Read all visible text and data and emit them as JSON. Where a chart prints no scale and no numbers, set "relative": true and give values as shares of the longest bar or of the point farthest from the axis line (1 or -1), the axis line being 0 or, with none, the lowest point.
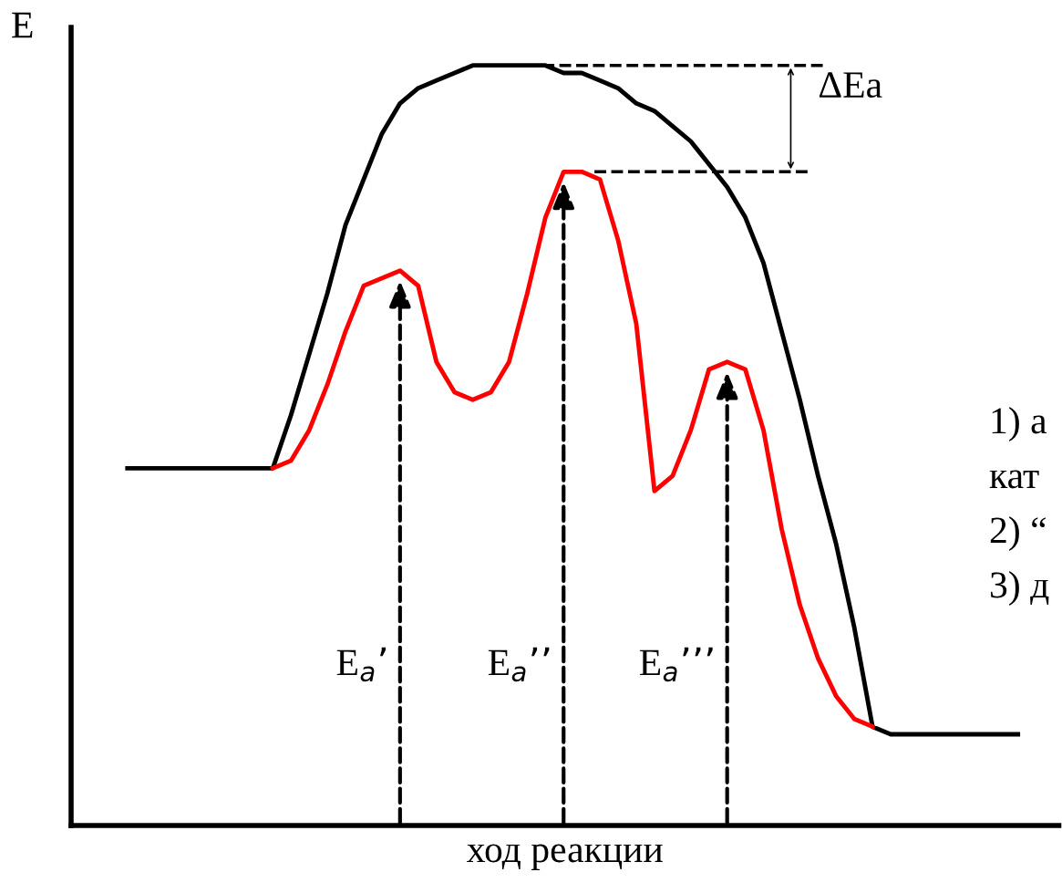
{
  "chart_data": {
    "type": "line",
    "relative": true,
    "xlabel": "ход реакции",
    "ylabel": "E",
    "categories": [
      null,
      null,
      null,
      null,
      null,
      null,
      null,
      null,
      null,
      null,
      null,
      null,
      null,
      null,
      null,
      null,
      null,
      null,
      null,
      null,
      null,
      null,
      null,
      null,
      null,
      null,
      null,
      null,
      null,
      null,
      null,
      null,
      null,
      null,
      null,
      null,
      null,
      null,
      null,
      null,
      null,
      null,
      null,
      null,
      null,
      null,
      null,
      null,
      null,
      null
    ],
    "series": [
      {
        "color": "#000000",
        "values": [
          0.47,
          0.47,
          0.47,
          0.47,
          0.47,
          0.47,
          0.47,
          0.47,
          0.47,
          0.54,
          0.62,
          0.7,
          0.79,
          0.85,
          0.91,
          0.95,
          0.97,
          0.98,
          0.99,
          1.0,
          1.0,
          1.0,
          1.0,
          1.0,
          0.99,
          0.99,
          0.98,
          0.97,
          0.95,
          0.94,
          0.92,
          0.9,
          0.87,
          0.84,
          0.8,
          0.74,
          0.65,
          0.56,
          0.46,
          0.37,
          0.26,
          0.13,
          0.12,
          0.12,
          0.12,
          0.12,
          0.12,
          0.12,
          0.12,
          0.12
        ]
      },
      {
        "color": "#ff0000",
        "values": [
          null,
          null,
          null,
          null,
          null,
          null,
          null,
          null,
          0.47,
          0.48,
          0.52,
          0.58,
          0.65,
          0.71,
          0.72,
          0.73,
          0.71,
          0.61,
          0.57,
          0.56,
          0.57,
          0.61,
          0.7,
          0.8,
          0.86,
          0.86,
          0.85,
          0.77,
          0.66,
          0.44,
          0.46,
          0.52,
          0.6,
          0.61,
          0.6,
          0.52,
          0.39,
          0.29,
          0.22,
          0.17,
          0.14,
          0.13,
          null,
          null,
          null,
          null,
          null,
          null,
          null,
          null
        ]
      }
    ],
    "line_style": "solid",
    "marker": "none",
    "annotations": [
      "ΔEa",
      "E$_{a}$’",
      "E$_{a}$’’",
      "E$_{a}$’’’",
      "1) а",
      "кат",
      "2) “",
      "3) д"
    ]
  }
}
